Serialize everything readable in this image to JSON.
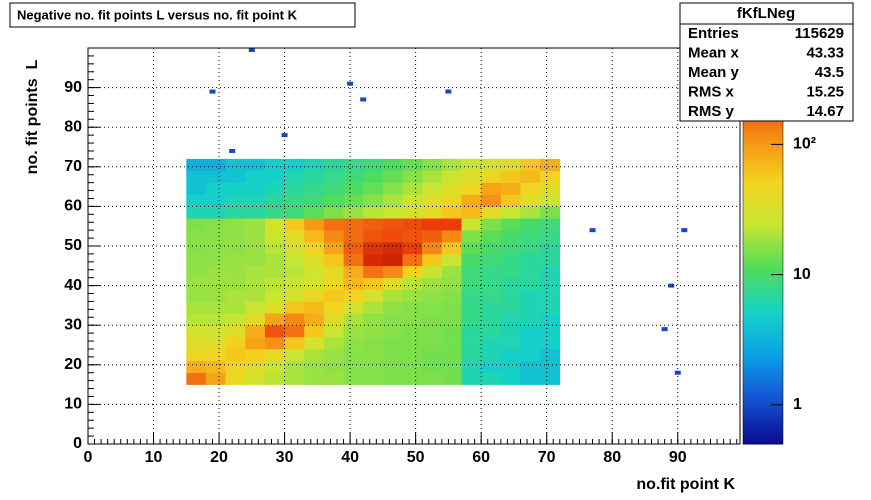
{
  "chart_data": {
    "type": "heatmap",
    "title": "Negative no. fit points L versus no. fit point K",
    "x_label": "no.fit point K",
    "y_label": "no. fit points  L",
    "xlim": [
      0,
      99.5
    ],
    "ylim": [
      0,
      100
    ],
    "xticks": [
      0,
      10,
      20,
      30,
      40,
      50,
      60,
      70,
      80,
      90
    ],
    "yticks": [
      0,
      10,
      20,
      30,
      40,
      50,
      60,
      70,
      80,
      90
    ],
    "grid": true,
    "z_log": true,
    "zlim": [
      0.5,
      550
    ],
    "zticks": [
      1,
      10,
      {
        "value": 100,
        "label": "10²"
      }
    ],
    "palette": [
      "#0a0a8c",
      "#1450d2",
      "#0aa0e6",
      "#14d2c8",
      "#50dc5a",
      "#c8e632",
      "#f5d21e",
      "#f58c14",
      "#eb3c0a",
      "#b41400"
    ],
    "x_edges": [
      15,
      18,
      21,
      24,
      27,
      30,
      33,
      36,
      39,
      42,
      45,
      48,
      51,
      54,
      57,
      60,
      63,
      66,
      69,
      72
    ],
    "y_edges": [
      15,
      18,
      21,
      24,
      27,
      30,
      33,
      36,
      39,
      42,
      45,
      48,
      51,
      54,
      57,
      60,
      63,
      66,
      69,
      72
    ],
    "z": [
      [
        150,
        90,
        45,
        30,
        22,
        20,
        18,
        18,
        16,
        16,
        15,
        15,
        15,
        14,
        6,
        6,
        5,
        4,
        4
      ],
      [
        80,
        70,
        50,
        35,
        25,
        20,
        18,
        17,
        16,
        16,
        15,
        15,
        14,
        14,
        6,
        5,
        5,
        4,
        4
      ],
      [
        45,
        50,
        60,
        55,
        40,
        25,
        20,
        18,
        16,
        16,
        15,
        15,
        14,
        14,
        7,
        6,
        5,
        5,
        4
      ],
      [
        35,
        35,
        55,
        90,
        110,
        60,
        30,
        20,
        17,
        16,
        15,
        15,
        15,
        14,
        7,
        6,
        6,
        5,
        5
      ],
      [
        28,
        28,
        35,
        80,
        200,
        150,
        60,
        25,
        18,
        17,
        16,
        15,
        15,
        14,
        7,
        7,
        6,
        5,
        5
      ],
      [
        22,
        22,
        25,
        40,
        90,
        120,
        80,
        35,
        20,
        17,
        16,
        16,
        15,
        15,
        8,
        7,
        6,
        6,
        5
      ],
      [
        20,
        20,
        20,
        25,
        35,
        60,
        70,
        50,
        30,
        20,
        17,
        16,
        16,
        15,
        8,
        7,
        7,
        6,
        6
      ],
      [
        18,
        18,
        20,
        20,
        24,
        30,
        45,
        60,
        50,
        30,
        20,
        18,
        17,
        16,
        8,
        8,
        7,
        6,
        6
      ],
      [
        18,
        18,
        18,
        20,
        22,
        25,
        30,
        45,
        70,
        60,
        35,
        22,
        18,
        17,
        9,
        8,
        7,
        7,
        6
      ],
      [
        17,
        18,
        18,
        20,
        20,
        22,
        28,
        40,
        80,
        150,
        120,
        50,
        25,
        18,
        9,
        8,
        8,
        7,
        6
      ],
      [
        17,
        17,
        18,
        18,
        20,
        24,
        35,
        60,
        150,
        350,
        400,
        150,
        60,
        25,
        10,
        9,
        8,
        7,
        7
      ],
      [
        16,
        17,
        17,
        18,
        22,
        30,
        50,
        90,
        180,
        300,
        350,
        250,
        120,
        60,
        12,
        10,
        9,
        8,
        7
      ],
      [
        16,
        16,
        17,
        18,
        25,
        40,
        70,
        120,
        160,
        200,
        220,
        200,
        180,
        120,
        15,
        12,
        10,
        9,
        8
      ],
      [
        15,
        16,
        17,
        18,
        30,
        60,
        100,
        150,
        160,
        180,
        200,
        220,
        250,
        250,
        25,
        15,
        12,
        10,
        9
      ],
      [
        6,
        6,
        7,
        7,
        8,
        9,
        12,
        15,
        18,
        22,
        25,
        30,
        40,
        60,
        70,
        40,
        25,
        20,
        15
      ],
      [
        5,
        5,
        6,
        6,
        7,
        8,
        9,
        11,
        13,
        16,
        20,
        25,
        35,
        45,
        80,
        110,
        60,
        35,
        25
      ],
      [
        4,
        5,
        5,
        5,
        6,
        7,
        8,
        9,
        11,
        13,
        16,
        20,
        25,
        35,
        45,
        90,
        80,
        50,
        35
      ],
      [
        4,
        4,
        4,
        5,
        5,
        6,
        7,
        8,
        9,
        11,
        13,
        16,
        20,
        25,
        35,
        45,
        60,
        70,
        50
      ],
      [
        3,
        3,
        4,
        4,
        5,
        5,
        6,
        7,
        8,
        9,
        11,
        13,
        16,
        20,
        25,
        30,
        35,
        60,
        80
      ]
    ],
    "points": {
      "x": [
        25,
        19,
        40,
        42,
        55,
        30,
        22,
        77,
        91,
        89,
        88,
        90
      ],
      "y": [
        99.5,
        89,
        91,
        87,
        89,
        78,
        74,
        54,
        54,
        40,
        29,
        18
      ],
      "values": [
        1,
        1,
        1,
        1,
        1,
        1,
        1,
        1,
        1,
        1,
        1,
        1
      ]
    },
    "stats": {
      "title": "fKfLNeg",
      "rows": [
        [
          "Entries",
          115629
        ],
        [
          "Mean x",
          43.33
        ],
        [
          "Mean y",
          43.5
        ],
        [
          "RMS x",
          15.25
        ],
        [
          "RMS y",
          14.67
        ]
      ]
    }
  }
}
